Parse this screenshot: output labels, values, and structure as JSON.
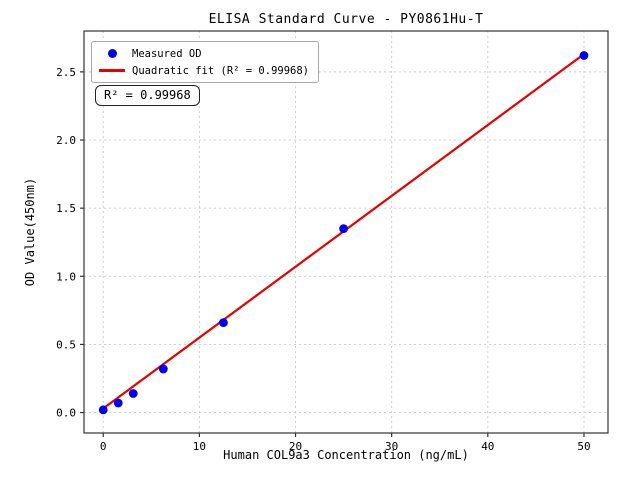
{
  "chart_data": {
    "type": "scatter",
    "title": "ELISA Standard Curve - PY0861Hu-T",
    "xlabel": "Human COL9a3 Concentration (ng/mL)",
    "ylabel": "OD Value(450nm)",
    "xlim": [
      -2.0,
      52.5
    ],
    "ylim": [
      -0.15,
      2.8
    ],
    "x_ticks": [
      0,
      10,
      20,
      30,
      40,
      50
    ],
    "x_tick_labels": [
      "0",
      "10",
      "20",
      "30",
      "40",
      "50"
    ],
    "y_ticks": [
      0.0,
      0.5,
      1.0,
      1.5,
      2.0,
      2.5
    ],
    "y_tick_labels": [
      "0.0",
      "0.5",
      "1.0",
      "1.5",
      "2.0",
      "2.5"
    ],
    "grid": true,
    "legend_position": "upper left",
    "series": [
      {
        "name": "Measured OD",
        "type": "scatter",
        "marker": "dot",
        "color": "#0000ee",
        "points": [
          [
            0,
            0.02
          ],
          [
            1.56,
            0.07
          ],
          [
            3.12,
            0.14
          ],
          [
            6.25,
            0.32
          ],
          [
            12.5,
            0.66
          ],
          [
            25,
            1.35
          ],
          [
            50,
            2.62
          ]
        ]
      },
      {
        "name": "Quadratic fit (R² = 0.99968)",
        "type": "line",
        "color": "#e80000",
        "points": [
          [
            0,
            0.03
          ],
          [
            50,
            2.63
          ]
        ]
      }
    ],
    "annotation": "R² = 0.99968",
    "r_squared": 0.99968,
    "colors": {
      "background": "#ffffff",
      "grid": "#c9c9c9",
      "spine": "#333333",
      "tick_text": "#000000"
    }
  }
}
